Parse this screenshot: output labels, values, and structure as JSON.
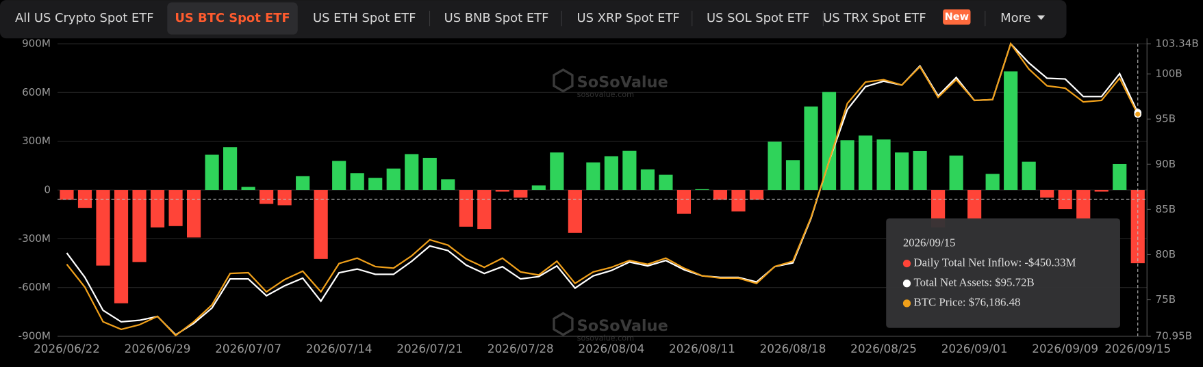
{
  "tabs": [
    {
      "label": "All US Crypto Spot ETF"
    },
    {
      "label": "US BTC Spot ETF",
      "active": true
    },
    {
      "label": "US ETH Spot ETF"
    },
    {
      "label": "US BNB Spot ETF"
    },
    {
      "label": "US XRP Spot ETF"
    },
    {
      "label": "US SOL Spot ETF"
    },
    {
      "label": "US TRX Spot ETF",
      "badge": "New"
    }
  ],
  "more": "More",
  "chart_data": {
    "type": "bar-line",
    "watermark": {
      "name": "SoSoValue",
      "url": "sosovalue.com"
    },
    "categories": [
      "2026/06/22",
      null,
      null,
      null,
      null,
      "2026/06/29",
      null,
      null,
      null,
      null,
      "2026/07/07",
      null,
      null,
      null,
      null,
      "2026/07/14",
      null,
      null,
      null,
      null,
      "2026/07/21",
      null,
      null,
      null,
      null,
      "2026/07/28",
      null,
      null,
      null,
      null,
      "2026/08/04",
      null,
      null,
      null,
      null,
      "2026/08/11",
      null,
      null,
      null,
      null,
      "2026/08/18",
      null,
      null,
      null,
      null,
      "2026/08/25",
      null,
      null,
      null,
      null,
      "2026/09/01",
      null,
      null,
      null,
      null,
      "2026/09/09",
      null,
      null,
      null,
      "2026/09/15"
    ],
    "ylim": [
      -900,
      900
    ],
    "yticks": [
      {
        "value": 900,
        "label": "900M"
      },
      {
        "value": 600,
        "label": "600M"
      },
      {
        "value": 300,
        "label": "300M"
      },
      0,
      {
        "value": -300,
        "label": "-300M"
      },
      {
        "value": -600,
        "label": "-600M"
      },
      {
        "value": -900,
        "label": "-900M"
      }
    ],
    "y2lim": [
      70.95,
      103.34
    ],
    "y2ticks": [
      {
        "value": 103.34,
        "label": "103.34B"
      },
      {
        "value": 100,
        "label": "100B"
      },
      {
        "value": 95,
        "label": "95B"
      },
      {
        "value": 90,
        "label": "90B"
      },
      {
        "value": 85,
        "label": "85B"
      },
      {
        "value": 80,
        "label": "80B"
      },
      {
        "value": 75,
        "label": "75B"
      },
      {
        "value": 70.95,
        "label": "70.95B"
      }
    ],
    "y3lim": [
      57860,
      82000
    ],
    "grid": true,
    "series": [
      {
        "type": "bar",
        "color": "#2fd35a",
        "negative_color": "#ff4438",
        "values": [
          -60,
          -110,
          -465,
          -697,
          -443,
          -230,
          -222,
          -292,
          217,
          264,
          19,
          -85,
          -94,
          85,
          -424,
          179,
          104,
          75,
          132,
          221,
          198,
          66,
          -226,
          -240,
          -10,
          -47,
          28,
          231,
          -264,
          170,
          208,
          241,
          127,
          94,
          -146,
          5,
          -60,
          -132,
          -60,
          297,
          184,
          514,
          603,
          306,
          335,
          311,
          231,
          240,
          -230,
          212,
          -180,
          99,
          730,
          174,
          -47,
          -118,
          -180,
          -10,
          160,
          -450.33
        ]
      },
      {
        "type": "line",
        "axis": "y2",
        "color": "#ffffff",
        "values": [
          80.18,
          77.47,
          73.82,
          72.55,
          72.72,
          73.14,
          71.11,
          72.38,
          74.08,
          77.3,
          77.3,
          75.44,
          76.54,
          77.39,
          74.84,
          77.98,
          78.4,
          77.81,
          77.81,
          79.25,
          80.95,
          80.44,
          78.83,
          77.9,
          78.66,
          77.3,
          77.56,
          78.74,
          76.28,
          77.64,
          78.23,
          79.17,
          78.74,
          79.34,
          78.32,
          77.64,
          77.47,
          77.47,
          76.96,
          78.66,
          79.08,
          84.0,
          90.36,
          96.05,
          98.59,
          99.19,
          98.76,
          100.88,
          97.57,
          99.61,
          97.06,
          97.15,
          103.34,
          101.22,
          99.52,
          99.44,
          97.49,
          97.49,
          100.03,
          95.72
        ]
      },
      {
        "type": "line",
        "axis": "y3",
        "color": "#f0a01a",
        "values": [
          63801,
          61906,
          59062,
          58430,
          58809,
          59504,
          57925,
          59062,
          60452,
          63043,
          63106,
          61526,
          62537,
          63233,
          61526,
          63864,
          64307,
          63612,
          63485,
          64496,
          65823,
          65381,
          64244,
          63549,
          64307,
          63169,
          62917,
          64054,
          62222,
          63169,
          63549,
          64117,
          63801,
          64307,
          63485,
          62853,
          62664,
          62664,
          62222,
          63612,
          64054,
          67656,
          72332,
          77071,
          78840,
          79030,
          78588,
          80104,
          77577,
          79030,
          77324,
          77387,
          82000,
          79915,
          78525,
          78335,
          77198,
          77324,
          79156,
          76186.48
        ]
      }
    ],
    "tooltip": {
      "date": "2026/09/15",
      "lines": [
        "Daily Total Net Inflow: -$450.33M",
        "Total Net Assets: $95.72B",
        "BTC Price: $76,186.48"
      ]
    }
  }
}
